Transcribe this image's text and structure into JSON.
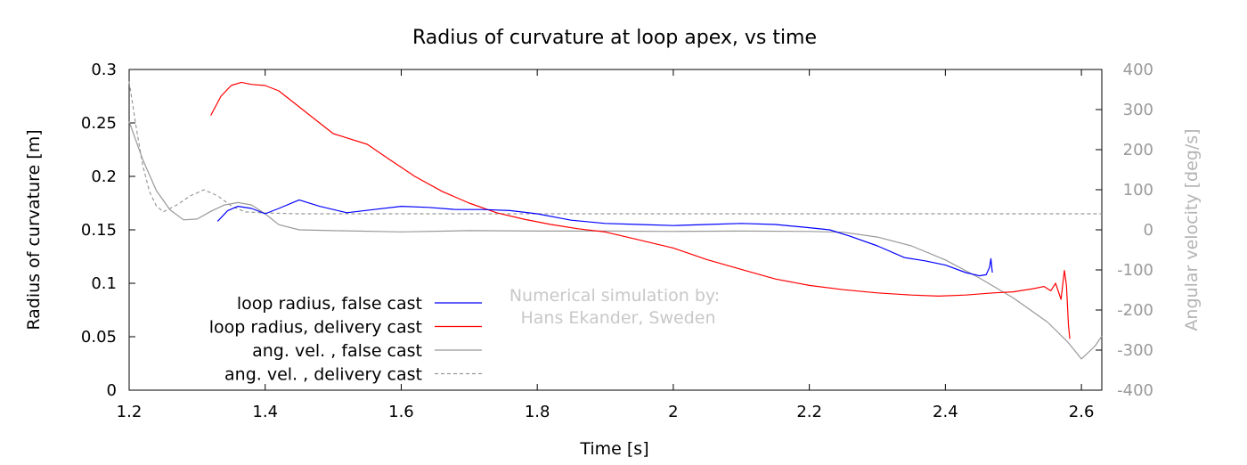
{
  "chart_data": {
    "type": "line",
    "title": "Radius of curvature at loop apex, vs time",
    "xlabel": "Time [s]",
    "ylabel": "Radius of curvature [m]",
    "y2label": "Angular velocity [deg/s]",
    "xlim": [
      1.2,
      2.63
    ],
    "ylim": [
      0,
      0.3
    ],
    "y2lim": [
      -400,
      400
    ],
    "xticks": [
      "1.2",
      "1.4",
      "1.6",
      "1.8",
      "2",
      "2.2",
      "2.4",
      "2.6"
    ],
    "xtick_values": [
      1.2,
      1.4,
      1.6,
      1.8,
      2.0,
      2.2,
      2.4,
      2.6
    ],
    "yticks": [
      "0",
      "0.05",
      "0.1",
      "0.15",
      "0.2",
      "0.25",
      "0.3"
    ],
    "ytick_values": [
      0,
      0.05,
      0.1,
      0.15,
      0.2,
      0.25,
      0.3
    ],
    "y2ticks": [
      "-400",
      "-300",
      "-200",
      "-100",
      "0",
      "100",
      "200",
      "300",
      "400"
    ],
    "y2tick_values": [
      -400,
      -300,
      -200,
      -100,
      0,
      100,
      200,
      300,
      400
    ],
    "annotation": [
      "Numerical simulation by:",
      "Hans Ekander, Sweden"
    ],
    "legend_position": "bottom-left",
    "colors": {
      "false_cast": "#0000ff",
      "delivery_cast": "#ff0000",
      "ang_vel": "#999999",
      "y2_axis": "#9a9a9a"
    },
    "series": [
      {
        "name": "loop radius, false cast",
        "axis": "y",
        "color": "#0000ff",
        "dash": "none",
        "x": [
          1.33,
          1.345,
          1.36,
          1.38,
          1.4,
          1.42,
          1.45,
          1.48,
          1.52,
          1.56,
          1.6,
          1.64,
          1.68,
          1.72,
          1.76,
          1.8,
          1.85,
          1.9,
          1.95,
          2.0,
          2.05,
          2.1,
          2.15,
          2.2,
          2.23,
          2.26,
          2.3,
          2.34,
          2.37,
          2.4,
          2.43,
          2.45,
          2.46,
          2.465,
          2.467,
          2.469
        ],
        "y": [
          0.158,
          0.168,
          0.172,
          0.17,
          0.165,
          0.17,
          0.178,
          0.172,
          0.166,
          0.169,
          0.172,
          0.171,
          0.169,
          0.169,
          0.168,
          0.165,
          0.159,
          0.156,
          0.155,
          0.154,
          0.155,
          0.156,
          0.155,
          0.152,
          0.15,
          0.144,
          0.135,
          0.124,
          0.121,
          0.117,
          0.11,
          0.107,
          0.108,
          0.115,
          0.123,
          0.11
        ]
      },
      {
        "name": "loop radius, delivery cast",
        "axis": "y",
        "color": "#ff0000",
        "dash": "none",
        "x": [
          1.32,
          1.335,
          1.35,
          1.365,
          1.38,
          1.4,
          1.42,
          1.44,
          1.46,
          1.48,
          1.5,
          1.52,
          1.55,
          1.58,
          1.62,
          1.66,
          1.7,
          1.74,
          1.78,
          1.82,
          1.86,
          1.9,
          1.94,
          1.98,
          2.0,
          2.05,
          2.1,
          2.15,
          2.2,
          2.25,
          2.3,
          2.35,
          2.39,
          2.43,
          2.47,
          2.5,
          2.53,
          2.545,
          2.555,
          2.562,
          2.57,
          2.575,
          2.578,
          2.581,
          2.583
        ],
        "y": [
          0.257,
          0.275,
          0.285,
          0.288,
          0.286,
          0.285,
          0.28,
          0.27,
          0.26,
          0.25,
          0.24,
          0.236,
          0.23,
          0.217,
          0.2,
          0.186,
          0.175,
          0.166,
          0.16,
          0.155,
          0.151,
          0.148,
          0.142,
          0.136,
          0.133,
          0.122,
          0.113,
          0.104,
          0.098,
          0.094,
          0.091,
          0.089,
          0.088,
          0.089,
          0.091,
          0.092,
          0.095,
          0.097,
          0.093,
          0.1,
          0.085,
          0.112,
          0.098,
          0.06,
          0.048
        ]
      },
      {
        "name": "ang. vel. , false cast",
        "axis": "y2",
        "color": "#999999",
        "dash": "none",
        "x": [
          1.2,
          1.22,
          1.24,
          1.26,
          1.28,
          1.3,
          1.32,
          1.34,
          1.36,
          1.38,
          1.4,
          1.42,
          1.45,
          1.5,
          1.6,
          1.7,
          1.8,
          1.9,
          2.0,
          2.1,
          2.2,
          2.25,
          2.3,
          2.35,
          2.4,
          2.45,
          2.5,
          2.55,
          2.58,
          2.6,
          2.62,
          2.63
        ],
        "y": [
          270,
          175,
          98,
          50,
          25,
          27,
          46,
          62,
          68,
          62,
          40,
          13,
          0,
          -2,
          -5,
          -2,
          -3,
          -3,
          -4,
          -3,
          -4,
          -6,
          -18,
          -40,
          -75,
          -120,
          -170,
          -230,
          -280,
          -322,
          -290,
          -265
        ]
      },
      {
        "name": "ang. vel. , delivery cast",
        "axis": "y2",
        "color": "#999999",
        "dash": "4,3",
        "x": [
          1.2,
          1.21,
          1.22,
          1.23,
          1.24,
          1.25,
          1.27,
          1.29,
          1.31,
          1.33,
          1.35,
          1.37,
          1.4,
          1.45,
          1.5,
          1.6,
          1.7,
          1.8,
          1.9,
          2.0,
          2.1,
          2.2,
          2.3,
          2.4,
          2.5,
          2.63
        ],
        "y": [
          370,
          260,
          160,
          95,
          60,
          45,
          62,
          85,
          100,
          85,
          60,
          45,
          42,
          40,
          40,
          40,
          40,
          40,
          40,
          40,
          40,
          40,
          40,
          40,
          40,
          40
        ]
      }
    ]
  }
}
